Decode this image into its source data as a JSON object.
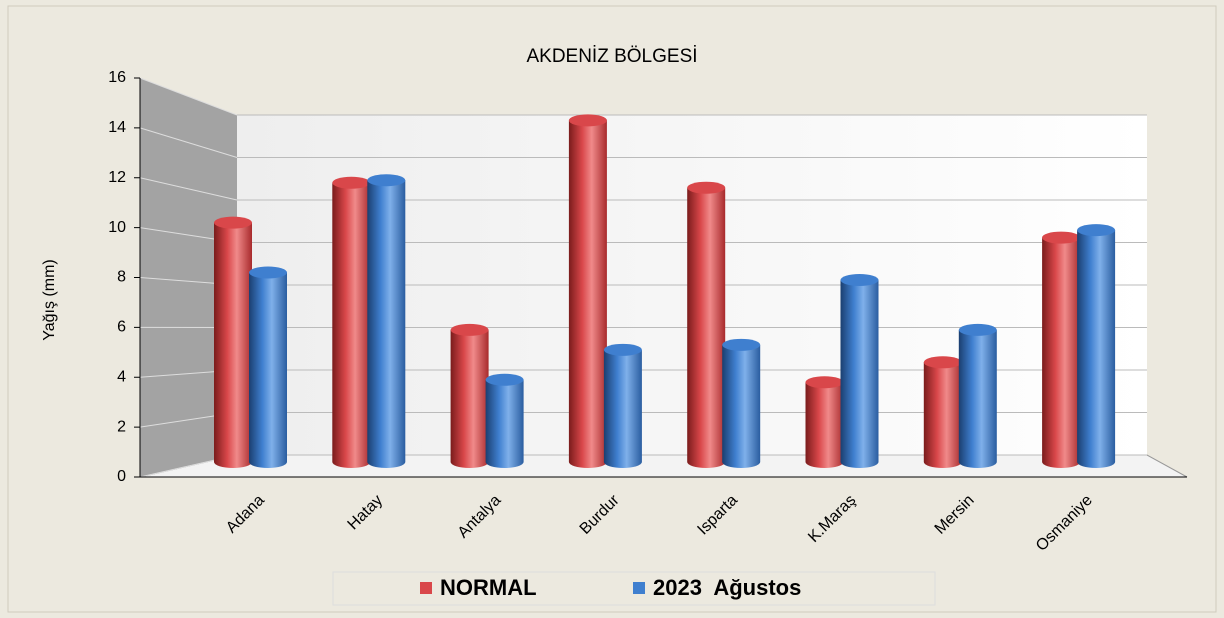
{
  "chart_data": {
    "type": "bar",
    "title": "AKDENİZ BÖLGESİ",
    "y_label": "Yağış (mm)",
    "categories": [
      "Adana",
      "Hatay",
      "Antalya",
      "Burdur",
      "Isparta",
      "K.Maraş",
      "Mersin",
      "Osmaniye"
    ],
    "series": [
      {
        "name": "NORMAL",
        "color": "#d9474a",
        "values": [
          10.2,
          11.8,
          5.9,
          14.3,
          11.6,
          3.8,
          4.6,
          9.6
        ]
      },
      {
        "name": "2023  Ağustos",
        "color": "#3f7fcf",
        "values": [
          8.2,
          11.9,
          3.9,
          5.1,
          5.3,
          7.9,
          5.9,
          9.9
        ]
      }
    ],
    "ylim": [
      0,
      16
    ],
    "yticks": [
      0,
      2,
      4,
      6,
      8,
      10,
      12,
      14,
      16
    ],
    "grid": true
  }
}
